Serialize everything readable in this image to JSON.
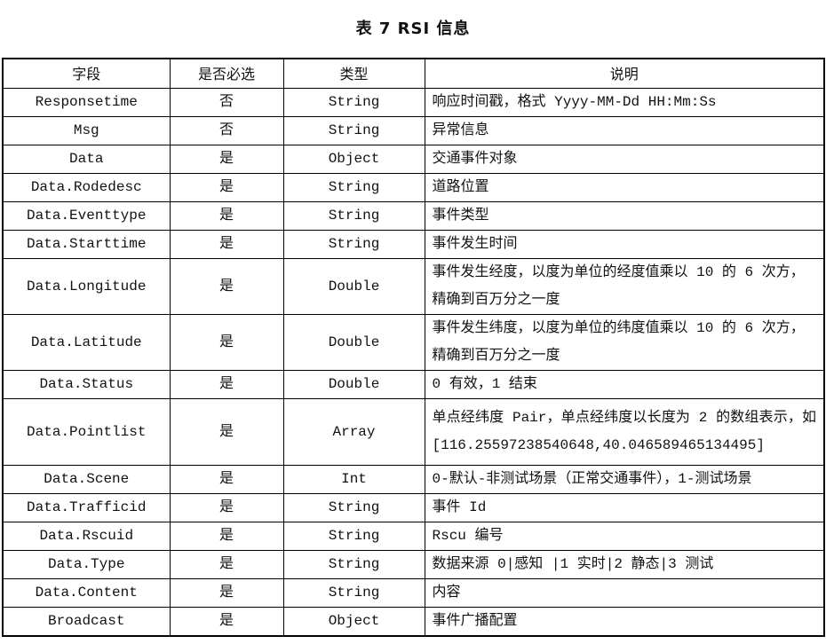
{
  "title": "表 7 RSI 信息",
  "headers": [
    "字段",
    "是否必选",
    "类型",
    "说明"
  ],
  "rows": [
    [
      "Responsetime",
      "否",
      "String",
      "响应时间戳，格式 Yyyy-MM-Dd HH:Mm:Ss"
    ],
    [
      "Msg",
      "否",
      "String",
      "异常信息"
    ],
    [
      "Data",
      "是",
      "Object",
      "交通事件对象"
    ],
    [
      "Data.Rodedesc",
      "是",
      "String",
      "道路位置"
    ],
    [
      "Data.Eventtype",
      "是",
      "String",
      "事件类型"
    ],
    [
      "Data.Starttime",
      "是",
      "String",
      "事件发生时间"
    ],
    [
      "Data.Longitude",
      "是",
      "Double",
      "事件发生经度，以度为单位的经度值乘以 10 的 6 次方，精确到百万分之一度"
    ],
    [
      "Data.Latitude",
      "是",
      "Double",
      "事件发生纬度，以度为单位的纬度值乘以 10 的 6 次方，精确到百万分之一度"
    ],
    [
      "Data.Status",
      "是",
      "Double",
      "0 有效，1 结束"
    ],
    [
      "Data.Pointlist",
      "是",
      "Array",
      "单点经纬度 Pair，单点经纬度以长度为 2 的数组表示，如[116.25597238540648,40.046589465134495]"
    ],
    [
      "Data.Scene",
      "是",
      "Int",
      "0-默认-非测试场景（正常交通事件），1-测试场景"
    ],
    [
      "Data.Trafficid",
      "是",
      "String",
      "事件 Id"
    ],
    [
      "Data.Rscuid",
      "是",
      "String",
      "Rscu 编号"
    ],
    [
      "Data.Type",
      "是",
      "String",
      "数据来源 0|感知 |1 实时|2 静态|3 测试"
    ],
    [
      "Data.Content",
      "是",
      "String",
      "内容"
    ],
    [
      "Broadcast",
      "是",
      "Object",
      "事件广播配置"
    ]
  ]
}
